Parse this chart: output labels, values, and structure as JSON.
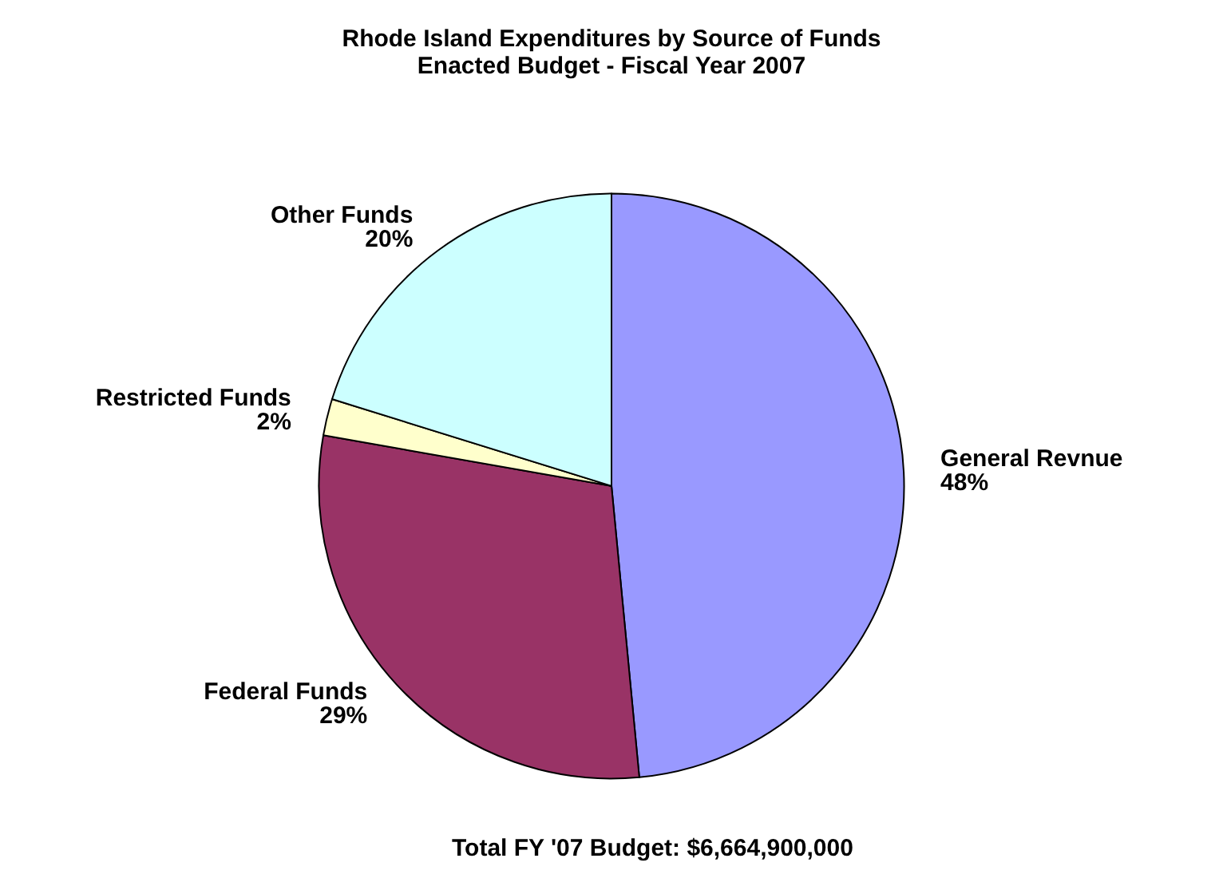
{
  "chart_data": {
    "type": "pie",
    "title": "Rhode Island Expenditures by Source of Funds",
    "subtitle": "Enacted Budget - Fiscal Year 2007",
    "categories": [
      "General Revnue",
      "Federal Funds",
      "Restricted Funds",
      "Other Funds"
    ],
    "values": [
      48,
      29,
      2,
      20
    ],
    "value_labels": [
      "48%",
      "29%",
      "2%",
      "20%"
    ],
    "colors": [
      "#9999ff",
      "#993366",
      "#ffffcc",
      "#ccffff"
    ],
    "legend": false,
    "annotations": [
      "Total FY '07 Budget: $6,664,900,000"
    ]
  }
}
